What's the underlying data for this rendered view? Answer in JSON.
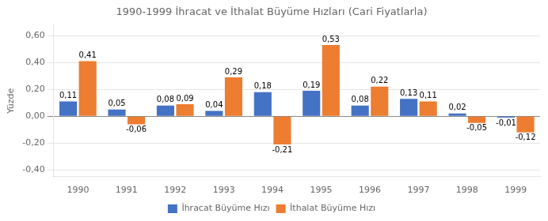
{
  "chart_data": {
    "type": "bar",
    "title": "1990-1999 İhracat ve İthalat Büyüme Hızları (Cari Fiyatlarla)",
    "ylabel": "Yüzde",
    "categories": [
      "1990",
      "1991",
      "1992",
      "1993",
      "1994",
      "1995",
      "1996",
      "1997",
      "1998",
      "1999"
    ],
    "series": [
      {
        "name": "İhracat Büyüme Hızı",
        "color": "#4472C4",
        "values": [
          0.11,
          0.05,
          0.08,
          0.04,
          0.18,
          0.19,
          0.08,
          0.13,
          0.02,
          -0.01
        ],
        "value_labels": [
          "0,11",
          "0,05",
          "0,08",
          "0,04",
          "0,18",
          "0,19",
          "0,08",
          "0,13",
          "0,02",
          "-0,01"
        ]
      },
      {
        "name": "İthalat Büyüme Hızı",
        "color": "#ED7D31",
        "values": [
          0.41,
          -0.06,
          0.09,
          0.29,
          -0.21,
          0.53,
          0.22,
          0.11,
          -0.05,
          -0.12
        ],
        "value_labels": [
          "0,41",
          "-0,06",
          "0,09",
          "0,29",
          "-0,21",
          "0,53",
          "0,22",
          "0,11",
          "-0,05",
          "-0,12"
        ]
      }
    ],
    "ylim": [
      -0.45,
      0.68
    ],
    "yticks": [
      {
        "value": -0.4,
        "label": "-0,40"
      },
      {
        "value": -0.2,
        "label": "-0,20"
      },
      {
        "value": 0.0,
        "label": "0,00"
      },
      {
        "value": 0.2,
        "label": "0,20"
      },
      {
        "value": 0.4,
        "label": "0,40"
      },
      {
        "value": 0.6,
        "label": "0,60"
      }
    ],
    "grid": true,
    "legend": "bottom",
    "data_labels": true
  }
}
